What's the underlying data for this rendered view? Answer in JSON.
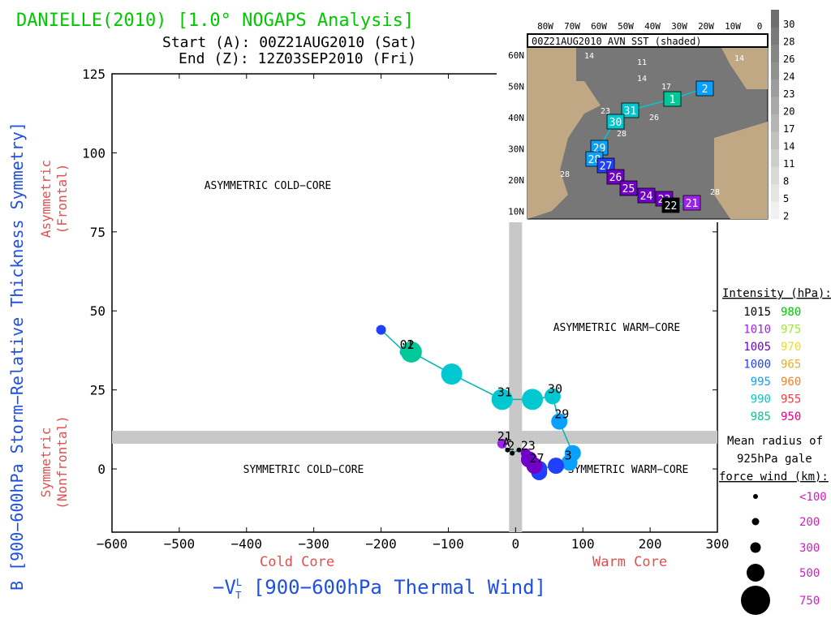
{
  "header": {
    "title": "DANIELLE(2010) [1.0° NOGAPS Analysis]",
    "start": "Start (A): 00Z21AUG2010 (Sat)",
    "end": "End (Z): 12Z03SEP2010 (Fri)"
  },
  "axes": {
    "xlabel": "−V",
    "xlabel_sup": "L",
    "xlabel_sub": "T",
    "xlabel_rest": " [900−600hPa Thermal Wind]",
    "ylabel": "B [900−600hPa Storm−Relative Thickness Symmetry]",
    "x_cold": "Cold Core",
    "x_warm": "Warm Core",
    "y_asym_1": "Asymmetric",
    "y_asym_2": "(Frontal)",
    "y_sym_1": "Symmetric",
    "y_sym_2": "(Nonfrontal)"
  },
  "quadrants": {
    "asym_cold": "ASYMMETRIC COLD−CORE",
    "asym_warm": "ASYMMETRIC WARM−CORE",
    "sym_cold": "SYMMETRIC COLD−CORE",
    "sym_warm": "SYMMETRIC WARM−CORE"
  },
  "chart_data": {
    "type": "scatter",
    "xlim": [
      -600,
      300
    ],
    "ylim": [
      -20,
      125
    ],
    "xticks": [
      -600,
      -500,
      -400,
      -300,
      -200,
      -100,
      0,
      100,
      200,
      300
    ],
    "yticks": [
      0,
      25,
      50,
      75,
      100,
      125
    ],
    "threshold_x": 0,
    "threshold_y": 10,
    "colors": {
      "c1015": "#000000",
      "c1010": "#a020f0",
      "c1005": "#7000c8",
      "c1000": "#2040ff",
      "c995": "#0aa0ff",
      "c990": "#00c8d0",
      "c985": "#00c898",
      "c980": "#00c800",
      "c975": "#a0e632",
      "c970": "#e6dc32",
      "c965": "#e6af2d",
      "c960": "#f08228",
      "c955": "#fa3c3c",
      "c950": "#f00082",
      "track": "#00b4b4"
    },
    "track": [
      {
        "x": -20,
        "y": 8,
        "color": "#a020f0",
        "size": "small",
        "label": "21"
      },
      {
        "x": -12,
        "y": 6,
        "color": "#000000",
        "size": "tiny",
        "label": "A"
      },
      {
        "x": -5,
        "y": 5,
        "color": "#000000",
        "size": "tiny",
        "label": "2"
      },
      {
        "x": 5,
        "y": 6,
        "color": "#000000",
        "size": "tiny",
        "label": ""
      },
      {
        "x": 15,
        "y": 5,
        "color": "#7000c8",
        "size": "small",
        "label": "23"
      },
      {
        "x": 20,
        "y": 3,
        "color": "#7000c8",
        "size": "medium",
        "label": ""
      },
      {
        "x": 28,
        "y": 1,
        "color": "#7000c8",
        "size": "medium",
        "label": "27"
      },
      {
        "x": 35,
        "y": 0,
        "color": "#2040ff",
        "size": "medium",
        "label": ""
      },
      {
        "x": 60,
        "y": 1,
        "color": "#2040ff",
        "size": "medium",
        "label": ""
      },
      {
        "x": 80,
        "y": 2,
        "color": "#0aa0ff",
        "size": "medium",
        "label": "3"
      },
      {
        "x": 85,
        "y": 5,
        "color": "#0aa0ff",
        "size": "medium",
        "label": ""
      },
      {
        "x": 65,
        "y": 15,
        "color": "#0aa0ff",
        "size": "medium",
        "label": "29"
      },
      {
        "x": 55,
        "y": 23,
        "color": "#00c8d0",
        "size": "medium",
        "label": "30"
      },
      {
        "x": 25,
        "y": 22,
        "color": "#00c8d0",
        "size": "large",
        "label": ""
      },
      {
        "x": -20,
        "y": 22,
        "color": "#00c8d0",
        "size": "large",
        "label": "31"
      },
      {
        "x": -95,
        "y": 30,
        "color": "#00c8d0",
        "size": "large",
        "label": ""
      },
      {
        "x": -155,
        "y": 37,
        "color": "#00c898",
        "size": "large",
        "label": "1"
      },
      {
        "x": -165,
        "y": 37,
        "color": "#0aa0ff",
        "size": "small",
        "label": "02"
      },
      {
        "x": -200,
        "y": 44,
        "color": "#2040ff",
        "size": "small",
        "label": ""
      }
    ],
    "extra_points": [
      {
        "x": 35,
        "y": -1,
        "color": "#2040ff",
        "size": "medium"
      }
    ]
  },
  "legend": {
    "title": "Intensity (hPa):",
    "rows": [
      {
        "a": "1015",
        "ac": "#000000",
        "b": "980",
        "bc": "#00c800"
      },
      {
        "a": "1010",
        "ac": "#a020f0",
        "b": "975",
        "bc": "#a0e632"
      },
      {
        "a": "1005",
        "ac": "#7000c8",
        "b": "970",
        "bc": "#e6dc32"
      },
      {
        "a": "1000",
        "ac": "#2040ff",
        "b": "965",
        "bc": "#e6af2d"
      },
      {
        "a": "995",
        "ac": "#0aa0ff",
        "b": "960",
        "bc": "#f08228"
      },
      {
        "a": "990",
        "ac": "#00c8d0",
        "b": "955",
        "bc": "#fa3c3c"
      },
      {
        "a": "985",
        "ac": "#00c898",
        "b": "950",
        "bc": "#f00082"
      }
    ],
    "radius_title_1": "Mean radius of",
    "radius_title_2": "925hPa gale",
    "radius_title_3": "force wind (km):",
    "radius_rows": [
      "<100",
      "200",
      "300",
      "500",
      "750"
    ]
  },
  "inset": {
    "title": "00Z21AUG2010 AVN SST (shaded)",
    "lon_labels": [
      "80W",
      "70W",
      "60W",
      "50W",
      "40W",
      "30W",
      "20W",
      "10W",
      "0"
    ],
    "lat_labels": [
      "60N",
      "50N",
      "40N",
      "30N",
      "20N",
      "10N"
    ],
    "colorbar": [
      "30",
      "28",
      "26",
      "24",
      "23",
      "20",
      "17",
      "14",
      "11",
      "8",
      "5",
      "2"
    ],
    "sst_labels": [
      "14",
      "11",
      "14",
      "17",
      "23",
      "26",
      "28",
      "28",
      "28",
      "14"
    ],
    "track_boxes": [
      {
        "label": "2",
        "color": "#0aa0ff"
      },
      {
        "label": "1",
        "color": "#00c898"
      },
      {
        "label": "31",
        "color": "#00c8d0"
      },
      {
        "label": "30",
        "color": "#00c8d0"
      },
      {
        "label": "29",
        "color": "#0aa0ff"
      },
      {
        "label": "28",
        "color": "#0aa0ff"
      },
      {
        "label": "27",
        "color": "#2040ff"
      },
      {
        "label": "26",
        "color": "#7000c8"
      },
      {
        "label": "25",
        "color": "#7000c8"
      },
      {
        "label": "24",
        "color": "#7000c8"
      },
      {
        "label": "23",
        "color": "#7000c8"
      },
      {
        "label": "22",
        "color": "#000000"
      },
      {
        "label": "21",
        "color": "#a020f0"
      }
    ]
  }
}
